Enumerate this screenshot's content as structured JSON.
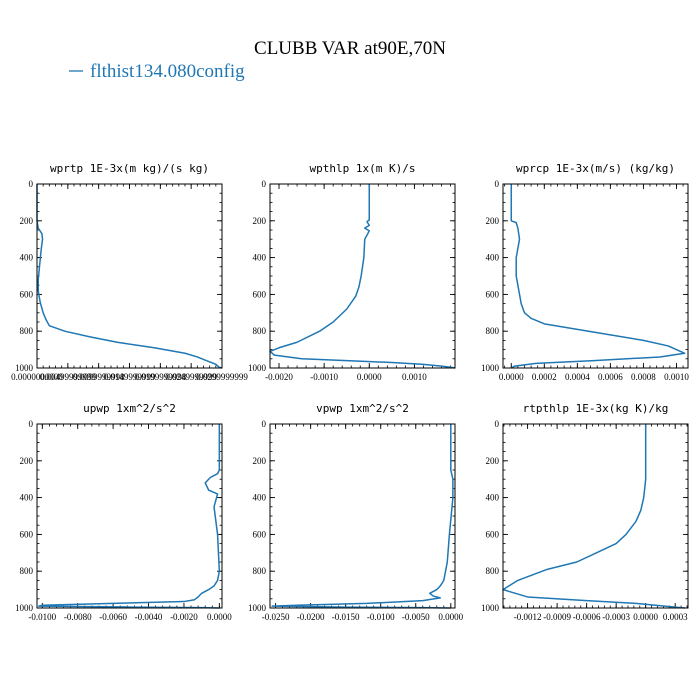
{
  "figure": {
    "title": "CLUBB VAR at90E,70N",
    "legend_label": "flthist134.080config",
    "line_color": "#1f77b4"
  },
  "chart_data": [
    {
      "type": "line",
      "title": "wprtp  1E-3x(m kg)/(s kg)",
      "xlim": [
        0.0,
        0.03
      ],
      "ylim": [
        1000,
        0
      ],
      "xticks": [
        0.0,
        0.005,
        0.01,
        0.015,
        0.02,
        0.025,
        0.03
      ],
      "xtick_labels": [
        "0.0000000000",
        "0.00499999999",
        "0.0099999998",
        "0.0149999999",
        "0.0199999998",
        "0.0249999999",
        "0.0299999999"
      ],
      "yticks": [
        0,
        200,
        400,
        600,
        800,
        1000
      ],
      "ytick_labels": [
        "0",
        "200",
        "400",
        "600",
        "800",
        "1000"
      ],
      "series": [
        {
          "x": [
            0.0,
            0.0,
            0.0002,
            0.0008,
            0.0009,
            0.0007,
            0.0004,
            0.0002,
            0.0002,
            0.0005,
            0.001,
            0.0015,
            0.002,
            0.0045,
            0.0085,
            0.013,
            0.019,
            0.024,
            0.026,
            0.0275,
            0.029,
            0.0295,
            0.03
          ],
          "y": [
            0,
            200,
            240,
            270,
            300,
            350,
            450,
            520,
            580,
            640,
            700,
            740,
            770,
            800,
            830,
            860,
            890,
            920,
            940,
            960,
            980,
            995,
            1000
          ]
        }
      ]
    },
    {
      "type": "line",
      "title": "wpthlp  1x(m K)/s",
      "xlim": [
        -0.0022,
        0.0019
      ],
      "ylim": [
        1000,
        0
      ],
      "xticks": [
        -0.002,
        -0.001,
        0.0,
        0.001
      ],
      "xtick_labels": [
        "-0.0020",
        "-0.0010",
        "0.0000",
        "0.0010"
      ],
      "yticks": [
        0,
        200,
        400,
        600,
        800,
        1000
      ],
      "ytick_labels": [
        "0",
        "200",
        "400",
        "600",
        "800",
        "1000"
      ],
      "series": [
        {
          "x": [
            0.0,
            0.0,
            -5e-05,
            0.0,
            -0.0001,
            0.0,
            -0.0001,
            -0.00012,
            -0.00018,
            -0.00023,
            -0.0003,
            -0.0005,
            -0.0008,
            -0.0011,
            -0.0016,
            -0.002,
            -0.0022,
            -0.0021,
            -0.0015,
            -0.0005,
            0.0005,
            0.0012,
            0.0016,
            0.0018,
            0.0019
          ],
          "y": [
            0,
            195,
            205,
            225,
            240,
            255,
            300,
            400,
            500,
            560,
            610,
            680,
            750,
            800,
            860,
            890,
            910,
            930,
            950,
            960,
            970,
            980,
            990,
            996,
            1000
          ]
        }
      ]
    },
    {
      "type": "line",
      "title": "wprcp  1E-3x(m/s) (kg/kg)",
      "xlim": [
        -5e-05,
        0.00107
      ],
      "ylim": [
        1000,
        0
      ],
      "xticks": [
        0.0,
        0.0002,
        0.0004,
        0.0006,
        0.0008,
        0.001
      ],
      "xtick_labels": [
        "0.0000",
        "0.0002",
        "0.0004",
        "0.0006",
        "0.0008",
        "0.0010"
      ],
      "yticks": [
        0,
        200,
        400,
        600,
        800,
        1000
      ],
      "ytick_labels": [
        "0",
        "200",
        "400",
        "600",
        "800",
        "1000"
      ],
      "series": [
        {
          "x": [
            0.0,
            0.0,
            3e-05,
            4e-05,
            5e-05,
            3e-05,
            3e-05,
            5e-05,
            6e-05,
            8e-05,
            0.00012,
            0.0002,
            0.0004,
            0.0006,
            0.0008,
            0.00095,
            0.00105,
            0.0009,
            0.0005,
            0.00015,
            2e-05,
            0.0
          ],
          "y": [
            0,
            200,
            210,
            240,
            300,
            400,
            500,
            600,
            650,
            700,
            730,
            760,
            790,
            820,
            850,
            880,
            920,
            940,
            960,
            975,
            990,
            1000
          ]
        }
      ]
    },
    {
      "type": "line",
      "title": "upwp  1xm^2/s^2",
      "xlim": [
        -0.0103,
        0.00015
      ],
      "ylim": [
        1000,
        0
      ],
      "xticks": [
        -0.01,
        -0.008,
        -0.006,
        -0.004,
        -0.002,
        0.0
      ],
      "xtick_labels": [
        "-0.0100",
        "-0.0080",
        "-0.0060",
        "-0.0040",
        "-0.0020",
        "0.0000"
      ],
      "yticks": [
        0,
        200,
        400,
        600,
        800,
        1000
      ],
      "ytick_labels": [
        "0",
        "200",
        "400",
        "600",
        "800",
        "1000"
      ],
      "series": [
        {
          "x": [
            0.0,
            0.0,
            -0.0001,
            -0.0005,
            -0.0008,
            -0.0006,
            -0.0001,
            -0.0003,
            -0.0001,
            0.0,
            -0.0001,
            -0.0003,
            -0.0006,
            -0.001,
            -0.0012,
            -0.0014,
            -0.002,
            -0.006,
            -0.01,
            -0.0102,
            -0.005,
            -0.001,
            0.0
          ],
          "y": [
            0,
            250,
            270,
            290,
            320,
            360,
            380,
            450,
            600,
            800,
            850,
            880,
            900,
            920,
            940,
            955,
            965,
            975,
            985,
            990,
            995,
            998,
            1000
          ]
        }
      ]
    },
    {
      "type": "line",
      "title": "vpwp  1xm^2/s^2",
      "xlim": [
        -0.0258,
        0.0006
      ],
      "ylim": [
        1000,
        0
      ],
      "xticks": [
        -0.025,
        -0.02,
        -0.015,
        -0.01,
        -0.005,
        0.0
      ],
      "xtick_labels": [
        "-0.0250",
        "-0.0200",
        "-0.0150",
        "-0.0100",
        "-0.0050",
        "0.0000"
      ],
      "yticks": [
        0,
        200,
        400,
        600,
        800,
        1000
      ],
      "ytick_labels": [
        "0",
        "200",
        "400",
        "600",
        "800",
        "1000"
      ],
      "series": [
        {
          "x": [
            0.0,
            0.0,
            0.0003,
            0.0003,
            -0.0002,
            -0.0005,
            -0.001,
            -0.0015,
            -0.002,
            -0.003,
            -0.0025,
            -0.0015,
            -0.004,
            -0.012,
            -0.022,
            -0.0255,
            -0.015,
            -0.004,
            0.0
          ],
          "y": [
            0,
            250,
            300,
            400,
            600,
            750,
            850,
            880,
            900,
            920,
            935,
            945,
            960,
            975,
            985,
            990,
            995,
            998,
            1000
          ]
        }
      ]
    },
    {
      "type": "line",
      "title": "rtpthlp  1E-3x(kg K)/kg",
      "xlim": [
        -0.00145,
        0.00043
      ],
      "ylim": [
        1000,
        0
      ],
      "xticks": [
        -0.0012,
        -0.0009,
        -0.0006,
        -0.0003,
        0.0,
        0.0003
      ],
      "xtick_labels": [
        "-0.0012",
        "-0.0009",
        "-0.0006",
        "-0.0003",
        "0.0000",
        "0.0003"
      ],
      "yticks": [
        0,
        200,
        400,
        600,
        800,
        1000
      ],
      "ytick_labels": [
        "0",
        "200",
        "400",
        "600",
        "800",
        "1000"
      ],
      "series": [
        {
          "x": [
            0.0,
            0.0,
            -2e-05,
            -5e-05,
            -0.0001,
            -0.0002,
            -0.0003,
            -0.0005,
            -0.0007,
            -0.001,
            -0.0013,
            -0.00145,
            -0.0012,
            -0.0006,
            -0.0001,
            0.0001,
            0.0003,
            0.0004
          ],
          "y": [
            0,
            300,
            400,
            470,
            530,
            600,
            650,
            700,
            750,
            790,
            850,
            900,
            940,
            960,
            975,
            985,
            995,
            1000
          ]
        }
      ]
    }
  ]
}
